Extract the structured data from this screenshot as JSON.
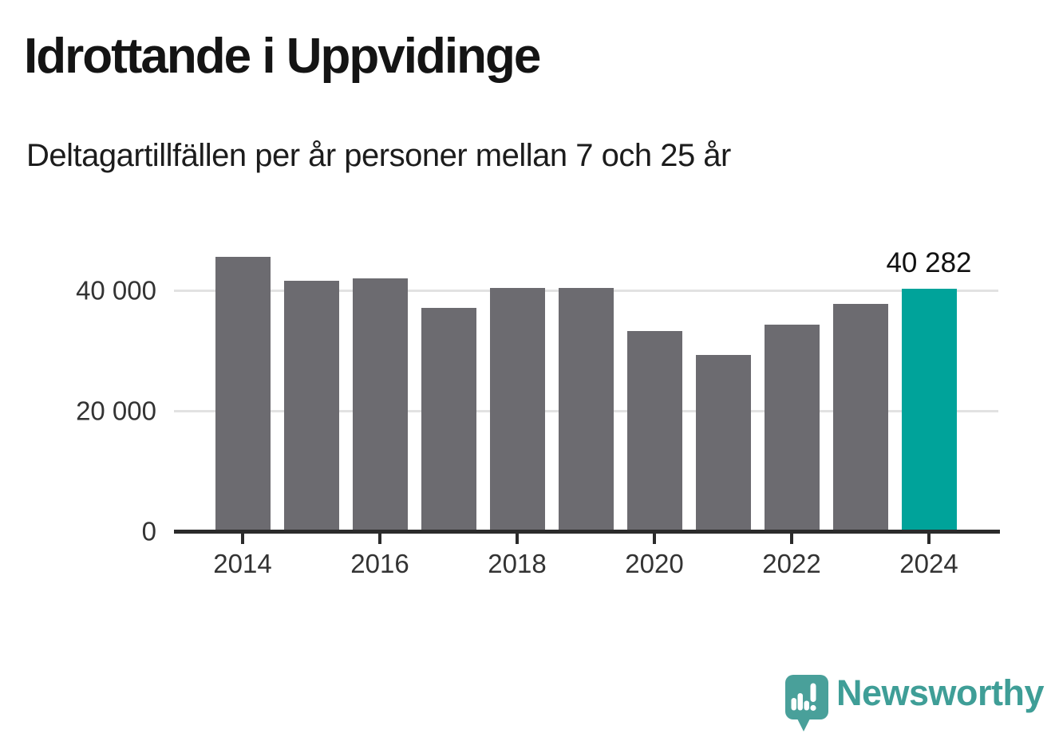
{
  "header": {
    "title": "Idrottande i Uppvidinge",
    "subtitle": "Deltagartillfällen per år personer mellan 7 och 25 år"
  },
  "chart_data": {
    "type": "bar",
    "title": "Idrottande i Uppvidinge",
    "subtitle": "Deltagartillfällen per år personer mellan 7 och 25 år",
    "categories": [
      "2014",
      "2015",
      "2016",
      "2017",
      "2018",
      "2019",
      "2020",
      "2021",
      "2022",
      "2023",
      "2024"
    ],
    "values": [
      45600,
      41600,
      42000,
      37100,
      40400,
      40400,
      33200,
      29300,
      34300,
      37700,
      40282
    ],
    "highlight_index": 10,
    "annotation": {
      "category": "2024",
      "label": "40 282"
    },
    "y_ticks": [
      {
        "value": 0,
        "label": "0"
      },
      {
        "value": 20000,
        "label": "20 000"
      },
      {
        "value": 40000,
        "label": "40 000"
      }
    ],
    "x_tick_labels": [
      "2014",
      "2016",
      "2018",
      "2020",
      "2022",
      "2024"
    ],
    "ylim": [
      0,
      48000
    ],
    "grid": true,
    "legend": false
  },
  "colors": {
    "accent": "#00a39a",
    "bar": "#6c6b70",
    "grid": "#e2e2e2",
    "axis": "#2b2b2b",
    "logo": "#49a09a",
    "wordmark": "#3f9e97"
  },
  "footer": {
    "brand": "Newsworthy"
  }
}
